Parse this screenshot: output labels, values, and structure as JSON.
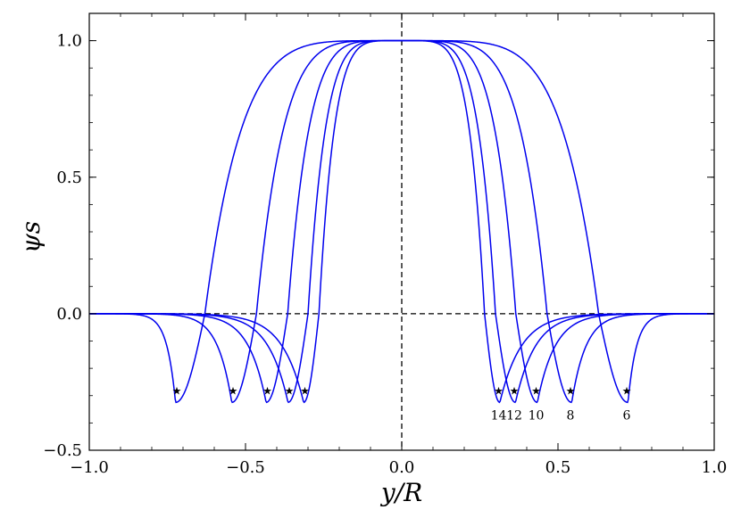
{
  "chart_data": {
    "type": "line",
    "title": "",
    "xlabel": "y/R",
    "ylabel": "ψs",
    "xlim": [
      -1.0,
      1.0
    ],
    "ylim": [
      -0.5,
      1.1
    ],
    "xticks": [
      -1.0,
      -0.5,
      0.0,
      0.5,
      1.0
    ],
    "xtick_labels": [
      "−1.0",
      "−0.5",
      "0.0",
      "0.5",
      "1.0"
    ],
    "yticks": [
      -0.5,
      0.0,
      0.5,
      1.0
    ],
    "ytick_labels": [
      "−0.5",
      "0.0",
      "0.5",
      "1.0"
    ],
    "grid": false,
    "line_color": "#0000ee",
    "reference_lines": [
      {
        "orientation": "horizontal",
        "value": 0.0,
        "style": "dashed"
      },
      {
        "orientation": "vertical",
        "value": 0.0,
        "style": "dashed"
      }
    ],
    "series": [
      {
        "label": "6",
        "star_x": 0.72,
        "min_y": -0.325,
        "zero_x": 0.63
      },
      {
        "label": "8",
        "star_x": 0.54,
        "min_y": -0.325,
        "zero_x": 0.465
      },
      {
        "label": "10",
        "star_x": 0.43,
        "min_y": -0.325,
        "zero_x": 0.365
      },
      {
        "label": "12",
        "star_x": 0.36,
        "min_y": -0.325,
        "zero_x": 0.3
      },
      {
        "label": "14",
        "star_x": 0.31,
        "min_y": -0.325,
        "zero_x": 0.265
      }
    ],
    "star_y": -0.28,
    "annotations": [
      "14",
      "12",
      "10",
      "8",
      "6"
    ]
  }
}
